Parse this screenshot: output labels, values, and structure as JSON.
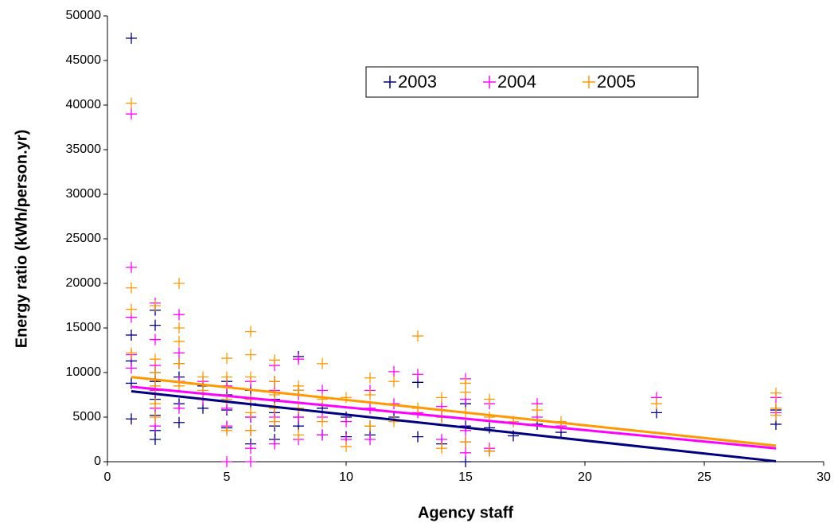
{
  "chart_data": {
    "type": "scatter",
    "x_label": "Agency staff",
    "y_label": "Energy ratio (kWh/person.yr)",
    "xlim": [
      0,
      30
    ],
    "xticks": [
      0,
      5,
      10,
      15,
      20,
      25,
      30
    ],
    "ylim": [
      0,
      50000
    ],
    "yticks": [
      0,
      5000,
      10000,
      15000,
      20000,
      25000,
      30000,
      35000,
      40000,
      45000,
      50000
    ],
    "grid": false,
    "legend": "top-right",
    "series": [
      {
        "name": "2003",
        "color": "#000080",
        "x": [
          1,
          1,
          1,
          1,
          1,
          2,
          2,
          2,
          2,
          2,
          2,
          2,
          2,
          3,
          3,
          3,
          3,
          4,
          4,
          5,
          5,
          5,
          5,
          6,
          6,
          6,
          6,
          6,
          7,
          7,
          7,
          7,
          7,
          8,
          8,
          8,
          8,
          9,
          9,
          10,
          10,
          11,
          11,
          12,
          13,
          13,
          14,
          14,
          15,
          15,
          15,
          15,
          16,
          16,
          17,
          18,
          19,
          23,
          28,
          28
        ],
        "values": [
          47500,
          14200,
          11300,
          8800,
          4800,
          17000,
          15300,
          10000,
          9000,
          7000,
          5200,
          3500,
          2500,
          11000,
          9500,
          6500,
          4400,
          8500,
          6000,
          9000,
          7500,
          5800,
          3800,
          8000,
          6500,
          5000,
          3500,
          2000,
          9000,
          7000,
          5500,
          4000,
          2500,
          11800,
          8000,
          5000,
          4000,
          6000,
          3000,
          5000,
          2800,
          4000,
          3000,
          5000,
          8900,
          2800,
          5000,
          2000,
          6500,
          4000,
          2200,
          0,
          3800,
          1200,
          2900,
          4200,
          3300,
          5500,
          5800,
          4200
        ],
        "trend_x": [
          1,
          28
        ],
        "trend_y": [
          7900,
          50
        ]
      },
      {
        "name": "2004",
        "color": "#ff00ff",
        "x": [
          1,
          1,
          1,
          1,
          1,
          2,
          2,
          2,
          2,
          2,
          2,
          3,
          3,
          3,
          3,
          4,
          4,
          5,
          5,
          5,
          5,
          6,
          6,
          6,
          6,
          6,
          7,
          7,
          7,
          7,
          8,
          8,
          8,
          8,
          9,
          9,
          9,
          10,
          10,
          11,
          11,
          11,
          12,
          12,
          13,
          13,
          14,
          14,
          15,
          15,
          15,
          15,
          16,
          16,
          17,
          18,
          18,
          19,
          23,
          28,
          28
        ],
        "values": [
          39000,
          21800,
          16200,
          12000,
          10500,
          17800,
          13700,
          10800,
          8000,
          6000,
          4000,
          16500,
          12200,
          9000,
          6000,
          9000,
          7000,
          8500,
          6000,
          4000,
          0,
          9000,
          7000,
          5000,
          1500,
          0,
          10800,
          8000,
          5000,
          2000,
          11500,
          7500,
          5000,
          2500,
          8000,
          5000,
          3000,
          4500,
          2500,
          8000,
          6000,
          2500,
          10100,
          6500,
          9800,
          5500,
          6200,
          2500,
          9300,
          7000,
          3500,
          1000,
          6500,
          1500,
          4500,
          6500,
          5000,
          4000,
          7200,
          7200,
          5500
        ],
        "trend_x": [
          1,
          28
        ],
        "trend_y": [
          8400,
          1500
        ]
      },
      {
        "name": "2005",
        "color": "#ff9900",
        "x": [
          1,
          1,
          1,
          1,
          2,
          2,
          2,
          2,
          2,
          2,
          3,
          3,
          3,
          3,
          3,
          4,
          4,
          5,
          5,
          5,
          5,
          6,
          6,
          6,
          6,
          6,
          6,
          7,
          7,
          7,
          7,
          7,
          8,
          8,
          8,
          8,
          9,
          9,
          9,
          10,
          10,
          11,
          11,
          11,
          12,
          12,
          13,
          13,
          14,
          14,
          14,
          15,
          15,
          15,
          15,
          16,
          16,
          16,
          17,
          18,
          19,
          23,
          28,
          28,
          28
        ],
        "values": [
          40200,
          19500,
          17100,
          12200,
          17500,
          11500,
          10000,
          8500,
          6500,
          5000,
          20000,
          15000,
          13500,
          11000,
          8500,
          9500,
          8000,
          11600,
          9500,
          7000,
          3500,
          14600,
          12000,
          9500,
          7000,
          5500,
          3500,
          11400,
          9000,
          7500,
          6000,
          4500,
          8500,
          8000,
          6000,
          3000,
          11000,
          7000,
          4500,
          7200,
          1700,
          9400,
          7500,
          4000,
          9000,
          4500,
          14100,
          6000,
          7200,
          5000,
          1500,
          8800,
          7800,
          5500,
          2200,
          7000,
          5000,
          1200,
          4500,
          5800,
          4500,
          6500,
          7700,
          6000,
          5200
        ],
        "trend_x": [
          1,
          28
        ],
        "trend_y": [
          9500,
          1800
        ]
      }
    ]
  }
}
